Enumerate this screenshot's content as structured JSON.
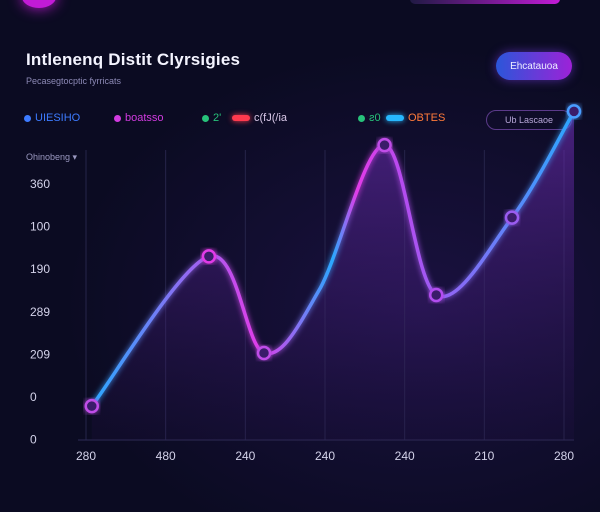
{
  "header": {
    "title": "Intlenenq Distit Clyrsigies",
    "subtitle": "Pecasegtocptic fyrricats",
    "cta_label": "Ehcatauoa"
  },
  "legend": {
    "items": [
      {
        "label": "UIESIHO",
        "color": "#3d7bff",
        "marker": "dot"
      },
      {
        "label": "boatsso",
        "color": "#d23be0",
        "marker": "dot"
      },
      {
        "label": "2'",
        "color": "#27c27a",
        "marker": "dot"
      },
      {
        "label": "c(fJ(/ia",
        "color": "#ff3a4e",
        "marker": "pill"
      },
      {
        "label": "ƨ0",
        "color": "#27c27a",
        "marker": "dot"
      },
      {
        "label": "OBTES",
        "color": "#27b8ff",
        "marker": "pill"
      }
    ],
    "button_label": "Ub Lascaoe"
  },
  "filter_label": "Ohinobeng ▾",
  "colors": {
    "background": "#0b0b22",
    "line_start": "#2aa8ff",
    "line_end": "#e23be8",
    "area_fill": "#6a2bb0"
  },
  "chart_data": {
    "type": "line",
    "title": "Intlenenq Distit Clyrsigies",
    "y_tick_labels": [
      "360",
      "100",
      "190",
      "289",
      "209",
      "0",
      "0"
    ],
    "x_tick_labels": [
      "280",
      "480",
      "240",
      "240",
      "240",
      "210",
      "280"
    ],
    "ylim": [
      0,
      6
    ],
    "y_tick_values": [
      6,
      5,
      4,
      3,
      2,
      1,
      0
    ],
    "grid": true,
    "legend": "top",
    "series": [
      {
        "values_x": [
          0,
          1.7,
          2.5,
          3.3,
          4.25,
          5.0,
          6.1,
          7.0
        ],
        "values_y": [
          0.7,
          3.8,
          1.8,
          3.1,
          6.1,
          3.0,
          4.6,
          6.8
        ]
      }
    ],
    "xlim": [
      -0.2,
      7.0
    ]
  }
}
